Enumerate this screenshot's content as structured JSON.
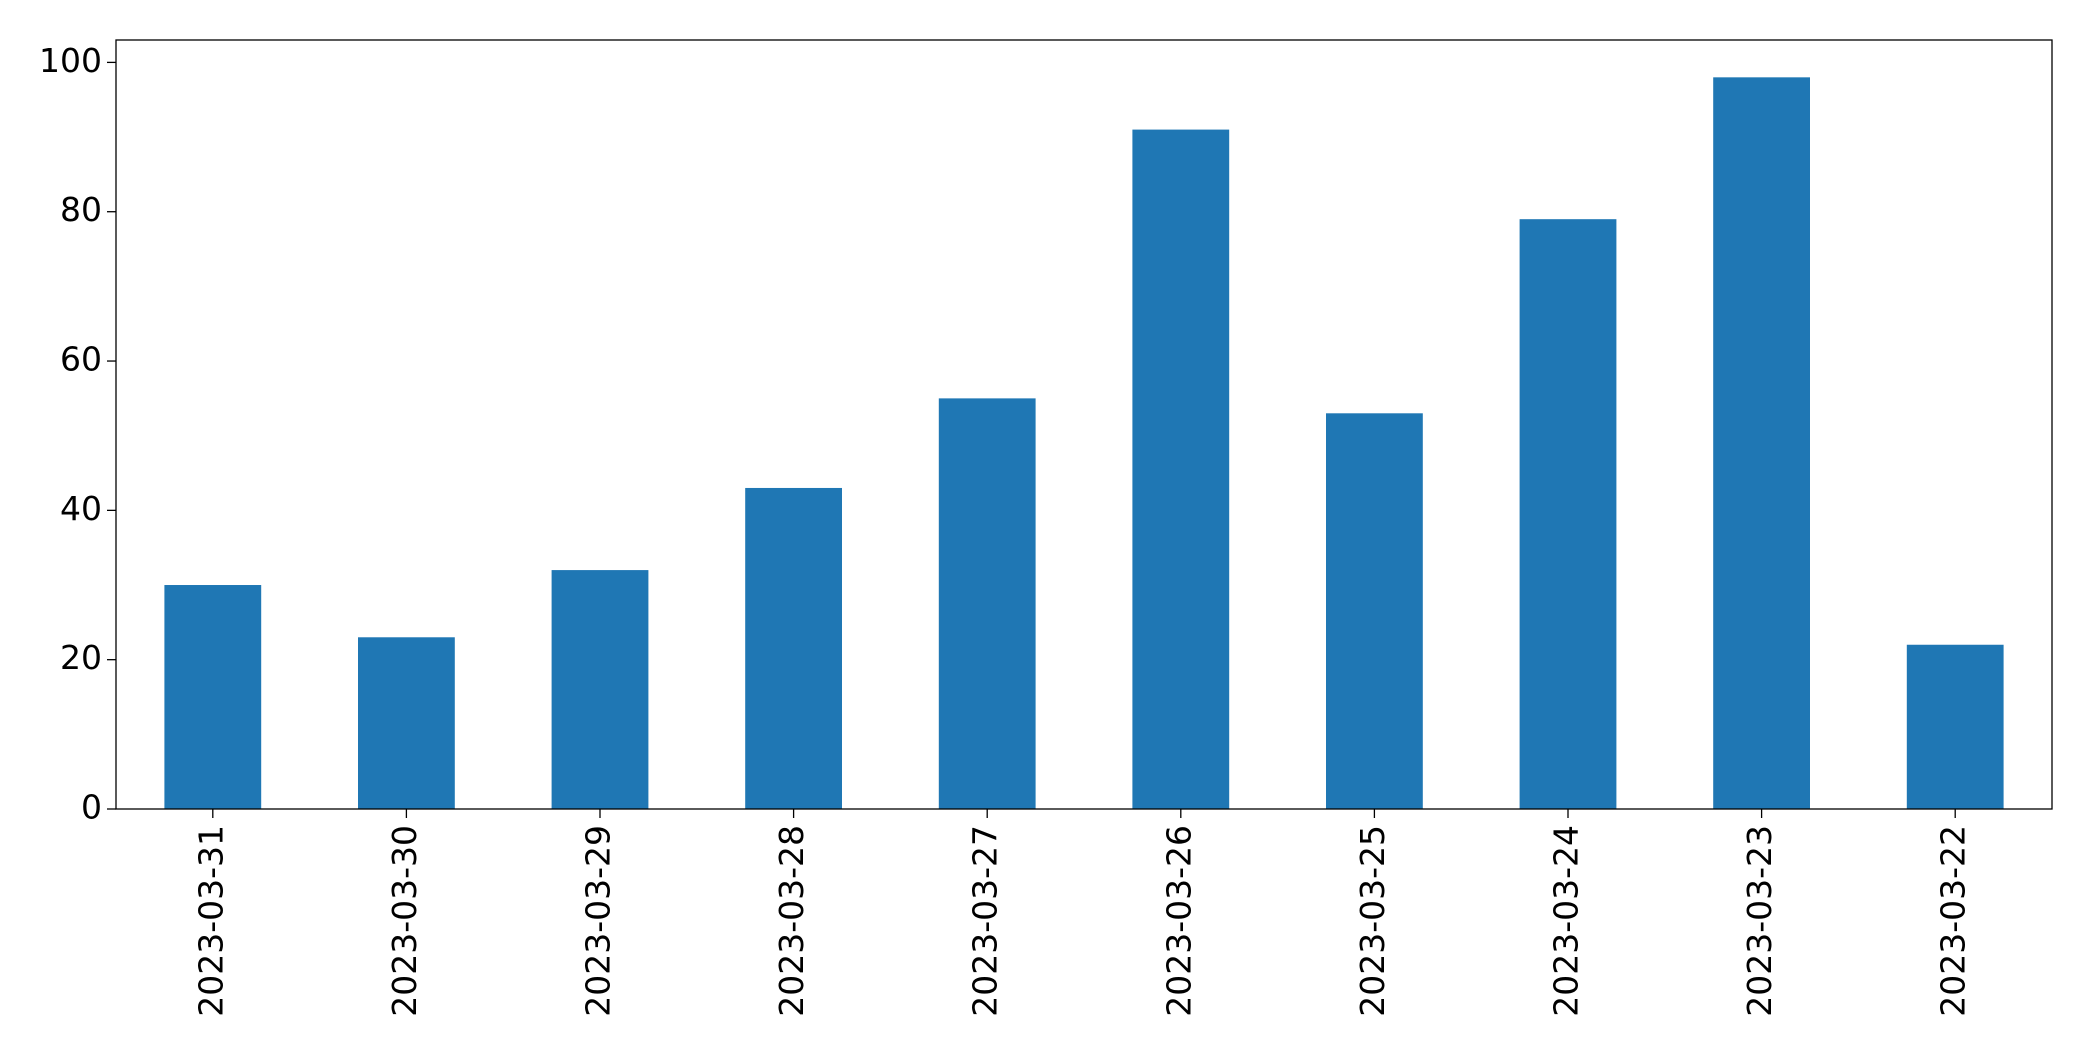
{
  "chart_data": {
    "type": "bar",
    "categories": [
      "2023-03-31",
      "2023-03-30",
      "2023-03-29",
      "2023-03-28",
      "2023-03-27",
      "2023-03-26",
      "2023-03-25",
      "2023-03-24",
      "2023-03-23",
      "2023-03-22"
    ],
    "values": [
      30,
      23,
      32,
      43,
      55,
      91,
      53,
      79,
      98,
      22
    ],
    "color": "#1f77b4",
    "ylim": [
      0,
      103
    ],
    "yticks": [
      0,
      20,
      40,
      60,
      80,
      100
    ],
    "grid": false
  }
}
